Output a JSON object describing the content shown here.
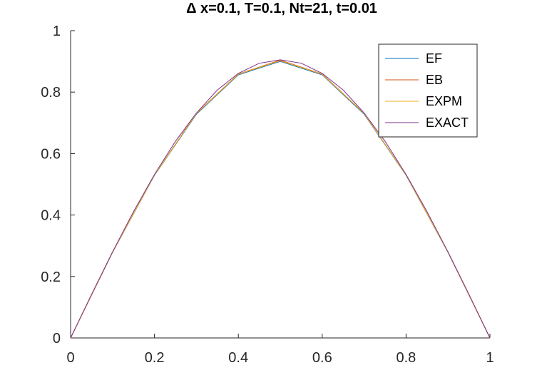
{
  "chart_data": {
    "type": "line",
    "title": "Δ x=0.1, T=0.1, Nt=21, t=0.01",
    "xlabel": "",
    "ylabel": "",
    "xlim": [
      0,
      1
    ],
    "ylim": [
      0,
      1
    ],
    "grid": false,
    "legend_position": "top-right",
    "x_ticks": [
      0,
      0.2,
      0.4,
      0.6,
      0.8,
      1
    ],
    "x_tick_labels": [
      "0",
      "0.2",
      "0.4",
      "0.6",
      "0.8",
      "1"
    ],
    "y_ticks": [
      0,
      0.2,
      0.4,
      0.6,
      0.8,
      1
    ],
    "y_tick_labels": [
      "0",
      "0.2",
      "0.4",
      "0.6",
      "0.8",
      "1"
    ],
    "series": [
      {
        "name": "EF",
        "color": "#0072BD",
        "x": [
          0,
          0.1,
          0.2,
          0.3,
          0.4,
          0.5,
          0.6,
          0.7,
          0.8,
          0.9,
          1.0
        ],
        "y": [
          0,
          0.278,
          0.529,
          0.728,
          0.856,
          0.9,
          0.856,
          0.728,
          0.529,
          0.278,
          0
        ]
      },
      {
        "name": "EB",
        "color": "#D95319",
        "x": [
          0,
          0.1,
          0.2,
          0.3,
          0.4,
          0.5,
          0.6,
          0.7,
          0.8,
          0.9,
          1.0
        ],
        "y": [
          0,
          0.279,
          0.531,
          0.731,
          0.859,
          0.904,
          0.859,
          0.731,
          0.531,
          0.279,
          0
        ]
      },
      {
        "name": "EXPM",
        "color": "#EDB120",
        "x": [
          0,
          0.1,
          0.2,
          0.3,
          0.4,
          0.5,
          0.6,
          0.7,
          0.8,
          0.9,
          1.0
        ],
        "y": [
          0,
          0.279,
          0.53,
          0.73,
          0.858,
          0.902,
          0.858,
          0.73,
          0.53,
          0.279,
          0
        ]
      },
      {
        "name": "EXACT",
        "color": "#7E2F8E",
        "x": [
          0,
          0.05,
          0.1,
          0.15,
          0.2,
          0.25,
          0.3,
          0.35,
          0.4,
          0.45,
          0.5,
          0.55,
          0.6,
          0.65,
          0.7,
          0.75,
          0.8,
          0.85,
          0.9,
          0.95,
          1.0
        ],
        "y": [
          0,
          0.142,
          0.28,
          0.411,
          0.532,
          0.64,
          0.732,
          0.807,
          0.861,
          0.894,
          0.905,
          0.894,
          0.861,
          0.807,
          0.732,
          0.64,
          0.532,
          0.411,
          0.28,
          0.142,
          0
        ]
      }
    ]
  }
}
